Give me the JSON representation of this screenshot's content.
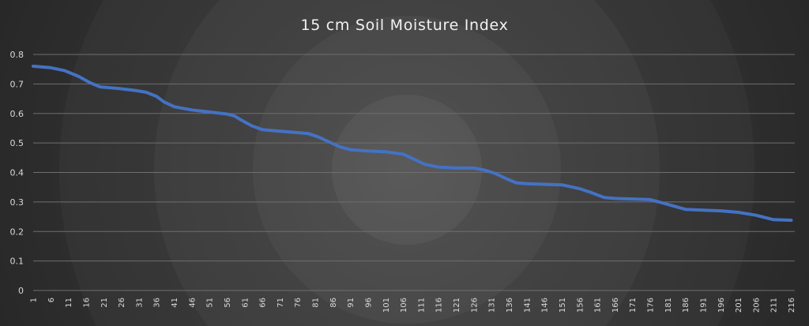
{
  "chart_data": {
    "type": "line",
    "title": "15 cm Soil Moisture Index",
    "xlabel": "",
    "ylabel": "",
    "ylim": [
      0,
      0.8
    ],
    "y_ticks": [
      "0",
      "0.1",
      "0.2",
      "0.3",
      "0.4",
      "0.5",
      "0.6",
      "0.7",
      "0.8"
    ],
    "x_range": [
      1,
      217
    ],
    "x_ticks": [
      "1",
      "6",
      "11",
      "16",
      "21",
      "26",
      "31",
      "36",
      "41",
      "46",
      "51",
      "56",
      "61",
      "66",
      "71",
      "76",
      "81",
      "86",
      "91",
      "96",
      "101",
      "106",
      "111",
      "116",
      "121",
      "126",
      "131",
      "136",
      "141",
      "146",
      "151",
      "156",
      "161",
      "166",
      "171",
      "176",
      "181",
      "186",
      "191",
      "196",
      "201",
      "206",
      "211",
      "216"
    ],
    "grid": "horizontal",
    "legend": "none",
    "series": [
      {
        "color": "#4472c4",
        "x": [
          1,
          6,
          10,
          14,
          17,
          20,
          25,
          30,
          33,
          36,
          38,
          41,
          46,
          51,
          56,
          58,
          60,
          63,
          66,
          71,
          76,
          79,
          82,
          85,
          88,
          91,
          96,
          101,
          106,
          109,
          112,
          116,
          121,
          126,
          129,
          132,
          135,
          138,
          141,
          146,
          151,
          156,
          159,
          163,
          166,
          171,
          176,
          180,
          186,
          191,
          196,
          201,
          206,
          211,
          216
        ],
        "y": [
          0.76,
          0.755,
          0.745,
          0.725,
          0.705,
          0.69,
          0.685,
          0.678,
          0.672,
          0.658,
          0.64,
          0.623,
          0.612,
          0.605,
          0.598,
          0.592,
          0.578,
          0.558,
          0.545,
          0.54,
          0.535,
          0.532,
          0.52,
          0.503,
          0.487,
          0.477,
          0.473,
          0.47,
          0.462,
          0.445,
          0.428,
          0.418,
          0.415,
          0.415,
          0.408,
          0.397,
          0.38,
          0.365,
          0.362,
          0.36,
          0.358,
          0.345,
          0.333,
          0.315,
          0.312,
          0.31,
          0.308,
          0.295,
          0.275,
          0.272,
          0.27,
          0.265,
          0.255,
          0.24,
          0.238
        ]
      }
    ]
  }
}
